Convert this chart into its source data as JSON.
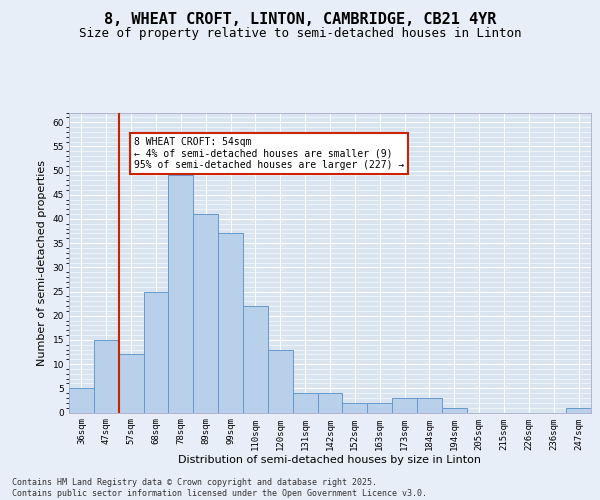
{
  "title": "8, WHEAT CROFT, LINTON, CAMBRIDGE, CB21 4YR",
  "subtitle": "Size of property relative to semi-detached houses in Linton",
  "xlabel": "Distribution of semi-detached houses by size in Linton",
  "ylabel": "Number of semi-detached properties",
  "categories": [
    "36sqm",
    "47sqm",
    "57sqm",
    "68sqm",
    "78sqm",
    "89sqm",
    "99sqm",
    "110sqm",
    "120sqm",
    "131sqm",
    "142sqm",
    "152sqm",
    "163sqm",
    "173sqm",
    "184sqm",
    "194sqm",
    "205sqm",
    "215sqm",
    "226sqm",
    "236sqm",
    "247sqm"
  ],
  "values": [
    5,
    15,
    12,
    25,
    49,
    41,
    37,
    22,
    13,
    4,
    4,
    2,
    2,
    3,
    3,
    1,
    0,
    0,
    0,
    0,
    1
  ],
  "bar_color": "#b8d0ea",
  "bar_edge_color": "#6699cc",
  "red_line_x": 1.5,
  "annotation_text": "8 WHEAT CROFT: 54sqm\n← 4% of semi-detached houses are smaller (9)\n95% of semi-detached houses are larger (227) →",
  "annotation_box_facecolor": "#ffffff",
  "annotation_box_edgecolor": "#cc2200",
  "red_line_color": "#cc2200",
  "ylim": [
    0,
    62
  ],
  "yticks": [
    0,
    5,
    10,
    15,
    20,
    25,
    30,
    35,
    40,
    45,
    50,
    55,
    60
  ],
  "bg_color": "#e8eef8",
  "plot_bg_color": "#d8e4f0",
  "grid_color": "#ffffff",
  "footer": "Contains HM Land Registry data © Crown copyright and database right 2025.\nContains public sector information licensed under the Open Government Licence v3.0.",
  "title_fontsize": 11,
  "subtitle_fontsize": 9,
  "tick_fontsize": 6.5,
  "ylabel_fontsize": 8,
  "xlabel_fontsize": 8,
  "annotation_fontsize": 7,
  "footer_fontsize": 6
}
